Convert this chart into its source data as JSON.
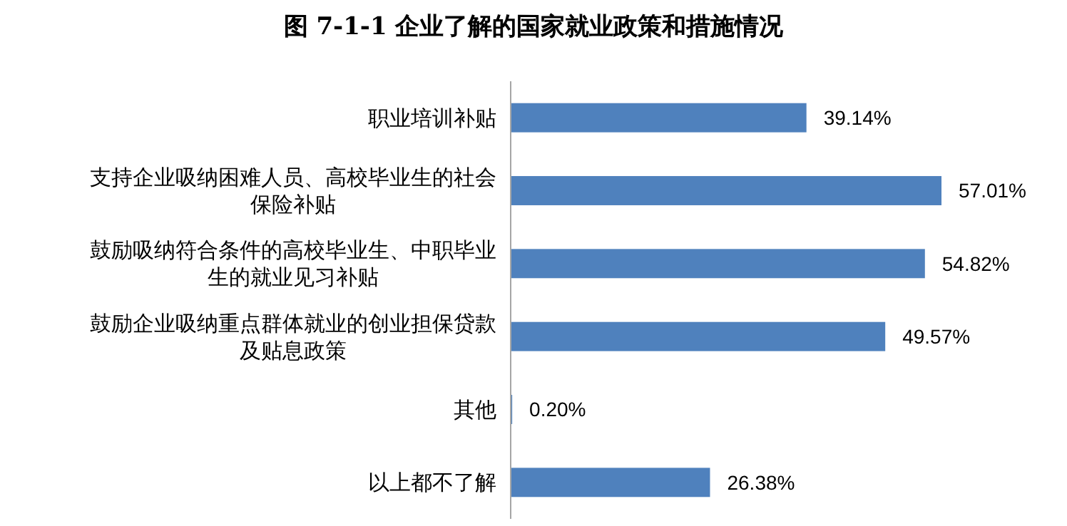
{
  "chart_data": {
    "type": "bar",
    "orientation": "horizontal",
    "relative": false,
    "title": "图 7-1-1 企业了解的国家就业政策和措施情况",
    "categories": [
      "职业培训补贴",
      "支持企业吸纳困难人员、高校毕业生的社会保险补贴",
      "鼓励吸纳符合条件的高校毕业生、中职毕业生的就业见习补贴",
      "鼓励企业吸纳重点群体就业的创业担保贷款及贴息政策",
      "其他",
      "以上都不了解"
    ],
    "values": [
      39.14,
      57.01,
      54.82,
      49.57,
      0.2,
      26.38
    ],
    "value_labels": [
      "39.14%",
      "57.01%",
      "54.82%",
      "49.57%",
      "0.20%",
      "26.38%"
    ],
    "color": "#4f81bd"
  }
}
